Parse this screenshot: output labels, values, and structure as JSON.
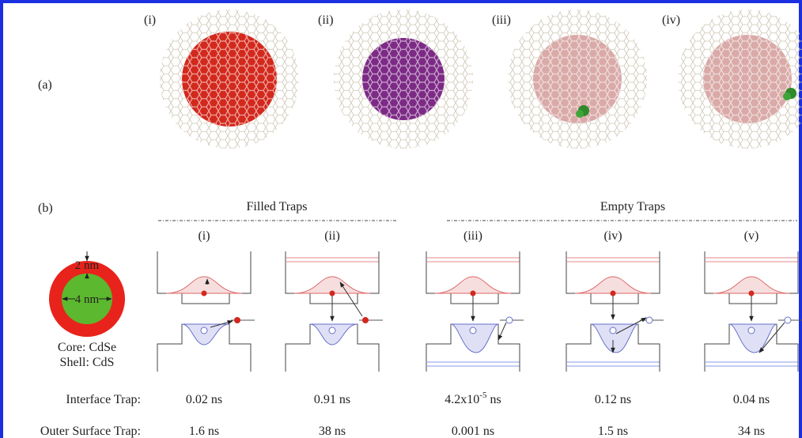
{
  "panel_a": {
    "label": "(a)",
    "structures": [
      "(i)",
      "(ii)",
      "(iii)",
      "(iv)"
    ]
  },
  "panel_b": {
    "label": "(b)",
    "groups": [
      "Filled Traps",
      "Empty Traps"
    ],
    "cases": [
      "(i)",
      "(ii)",
      "(iii)",
      "(iv)",
      "(v)"
    ],
    "schematic": {
      "shell_thickness": "2 nm",
      "core_diameter": "4 nm",
      "core": "Core: CdSe",
      "shell": "Shell: CdS"
    },
    "lifetimes": {
      "rows": [
        {
          "label": "Interface Trap:",
          "values": [
            "0.02 ns",
            "0.91 ns",
            {
              "mantissa": "4.2x10",
              "exponent": "-5",
              "unit": " ns"
            },
            "0.12 ns",
            "0.04 ns"
          ]
        },
        {
          "label": "Outer Surface Trap:",
          "values": [
            "1.6 ns",
            "38 ns",
            "0.001 ns",
            "1.5 ns",
            "34 ns"
          ]
        }
      ]
    }
  }
}
